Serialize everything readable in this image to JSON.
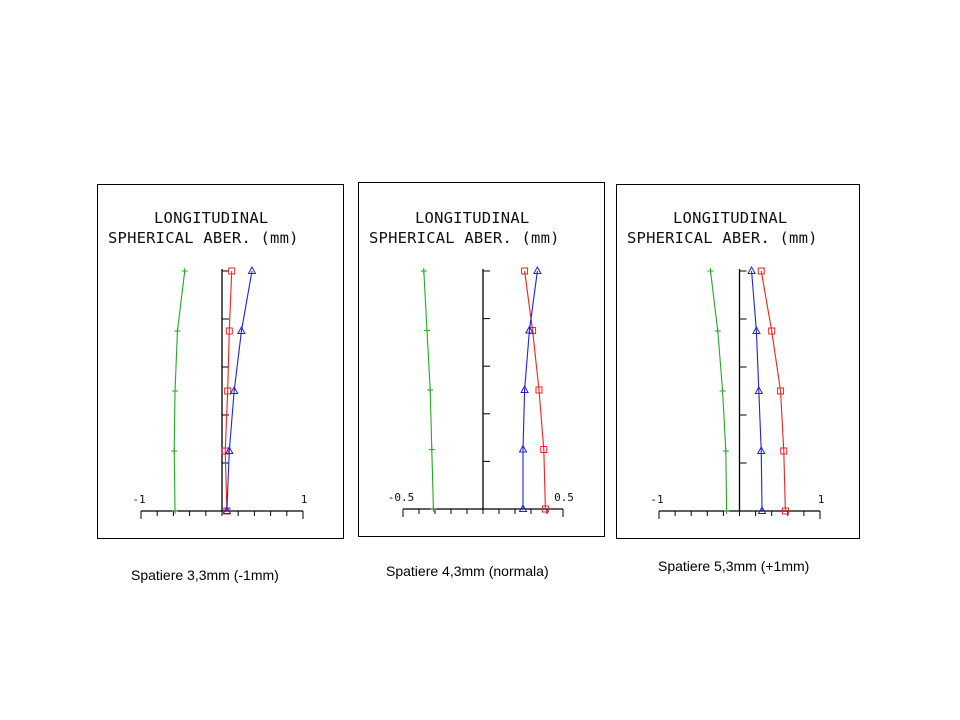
{
  "chart_data": [
    {
      "type": "line",
      "title": "LONGITUDINAL",
      "subtitle": "SPHERICAL ABER. (mm)",
      "xlim": [
        -1,
        1
      ],
      "ylim": [
        0,
        1
      ],
      "x_tick_labels": [
        "-1",
        "1"
      ],
      "caption": "Spatiere 3,3mm (-1mm)",
      "series": [
        {
          "color": "#22aa22",
          "marker": "plus",
          "x": [
            -0.58,
            -0.59,
            -0.58,
            -0.55,
            -0.46
          ],
          "y": [
            0,
            0.25,
            0.5,
            0.75,
            1
          ]
        },
        {
          "color": "#ee2222",
          "marker": "square",
          "x": [
            0.06,
            0.04,
            0.07,
            0.09,
            0.12
          ],
          "y": [
            0,
            0.25,
            0.5,
            0.75,
            1
          ]
        },
        {
          "color": "#2222dd",
          "marker": "triangle",
          "x": [
            0.06,
            0.09,
            0.15,
            0.24,
            0.37
          ],
          "y": [
            0,
            0.25,
            0.5,
            0.75,
            1
          ]
        }
      ]
    },
    {
      "type": "line",
      "title": "LONGITUDINAL",
      "subtitle": "SPHERICAL ABER. (mm)",
      "xlim": [
        -0.5,
        0.5
      ],
      "ylim": [
        0,
        1
      ],
      "x_tick_labels": [
        "-0.5",
        "0.5"
      ],
      "caption": "Spatiere 4,3mm (normala)",
      "series": [
        {
          "color": "#22aa22",
          "marker": "plus",
          "x": [
            -0.31,
            -0.32,
            -0.33,
            -0.35,
            -0.37
          ],
          "y": [
            0,
            0.25,
            0.5,
            0.75,
            1
          ]
        },
        {
          "color": "#ee2222",
          "marker": "square",
          "x": [
            0.39,
            0.38,
            0.35,
            0.31,
            0.26
          ],
          "y": [
            0,
            0.25,
            0.5,
            0.75,
            1
          ]
        },
        {
          "color": "#2222dd",
          "marker": "triangle",
          "x": [
            0.25,
            0.25,
            0.26,
            0.29,
            0.34
          ],
          "y": [
            0,
            0.25,
            0.5,
            0.75,
            1
          ]
        }
      ]
    },
    {
      "type": "line",
      "title": "LONGITUDINAL",
      "subtitle": "SPHERICAL ABER. (mm)",
      "xlim": [
        -1,
        1
      ],
      "ylim": [
        0,
        1
      ],
      "x_tick_labels": [
        "-1",
        "1"
      ],
      "caption": "Spatiere 5,3mm (+1mm)",
      "series": [
        {
          "color": "#22aa22",
          "marker": "plus",
          "x": [
            -0.16,
            -0.17,
            -0.21,
            -0.27,
            -0.36
          ],
          "y": [
            0,
            0.25,
            0.5,
            0.75,
            1
          ]
        },
        {
          "color": "#ee2222",
          "marker": "square",
          "x": [
            0.57,
            0.55,
            0.51,
            0.4,
            0.27
          ],
          "y": [
            0,
            0.25,
            0.5,
            0.75,
            1
          ]
        },
        {
          "color": "#2222dd",
          "marker": "triangle",
          "x": [
            0.28,
            0.27,
            0.24,
            0.21,
            0.15
          ],
          "y": [
            0,
            0.25,
            0.5,
            0.75,
            1
          ]
        }
      ]
    }
  ]
}
